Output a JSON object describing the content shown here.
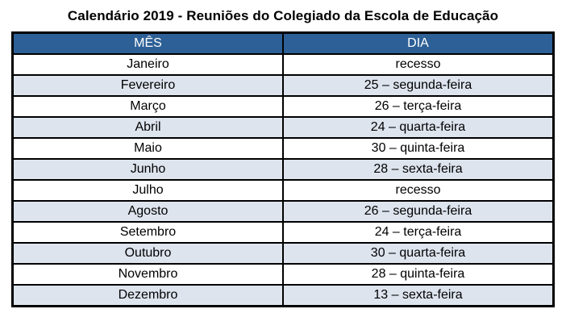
{
  "title": "Calendário 2019 - Reuniões do Colegiado da Escola de Educação",
  "table": {
    "headers": [
      "MÊS",
      "DIA"
    ],
    "rows": [
      {
        "month": "Janeiro",
        "day": "recesso"
      },
      {
        "month": "Fevereiro",
        "day": "25 – segunda-feira"
      },
      {
        "month": "Março",
        "day": "26 – terça-feira"
      },
      {
        "month": "Abril",
        "day": "24 – quarta-feira"
      },
      {
        "month": "Maio",
        "day": "30 – quinta-feira"
      },
      {
        "month": "Junho",
        "day": "28 – sexta-feira"
      },
      {
        "month": "Julho",
        "day": "recesso"
      },
      {
        "month": "Agosto",
        "day": "26 – segunda-feira"
      },
      {
        "month": "Setembro",
        "day": "24 – terça-feira"
      },
      {
        "month": "Outubro",
        "day": "30 – quarta-feira"
      },
      {
        "month": "Novembro",
        "day": "28 – quinta-feira"
      },
      {
        "month": "Dezembro",
        "day": "13 – sexta-feira"
      }
    ],
    "colors": {
      "header_background": "#2d6096",
      "header_text": "#ffffff",
      "shaded_row_background": "#dde4ee",
      "border": "#000000"
    }
  }
}
